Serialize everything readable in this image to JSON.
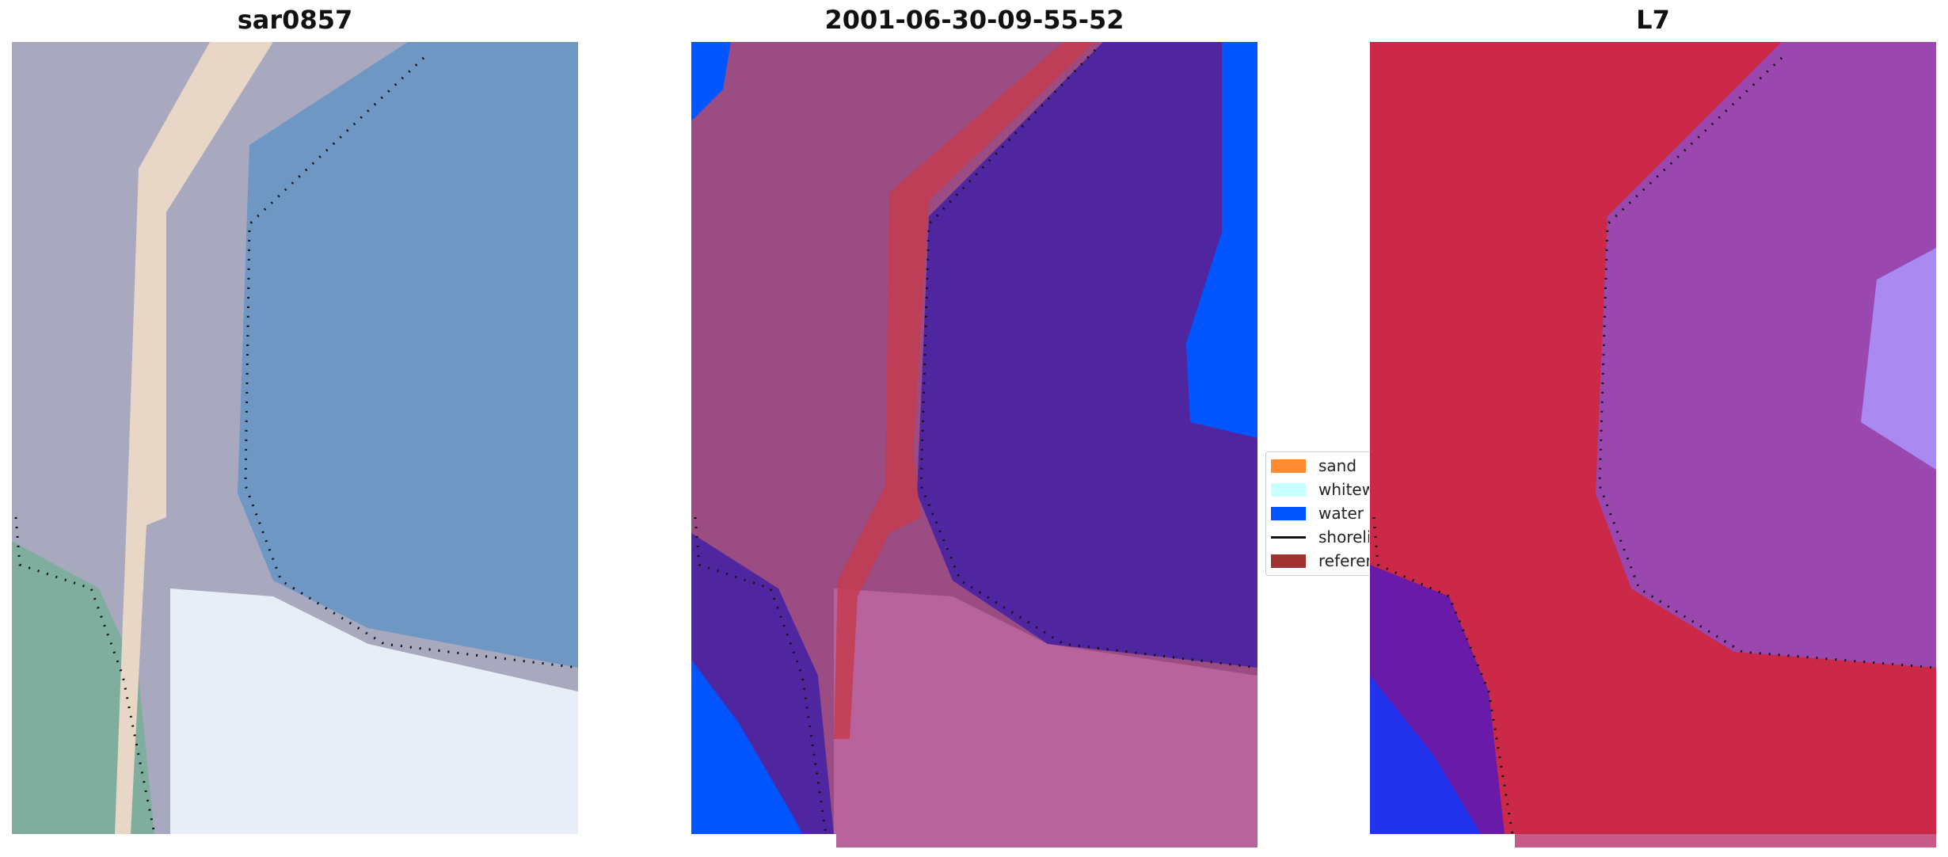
{
  "panels": [
    {
      "title": "sar0857"
    },
    {
      "title": "2001-06-30-09-55-52"
    },
    {
      "title": "L7"
    }
  ],
  "legend": {
    "items": [
      {
        "label": "sand",
        "color": "#ff8c32"
      },
      {
        "label": "whitewater",
        "color": "#c8ffff"
      },
      {
        "label": "water",
        "color": "#0055ff"
      },
      {
        "label": "shoreline",
        "color": "#111111"
      },
      {
        "label": "reference",
        "color": "#a03232"
      }
    ]
  },
  "colors": {
    "rgb_water": "#6f97c3",
    "rgb_land": "#a8a8be",
    "rgb_pier": "#e8d6c6",
    "rgb_surf": "#e8eef6",
    "rgb_green": "#7fae9e",
    "class_land": "#9a4c83",
    "class_water": "#5026a0",
    "class_blue": "#0055ff",
    "class_ref": "#c43c50",
    "class_beach": "#b8639b",
    "mndwi_land": "#cc2848",
    "mndwi_water": "#9a48b0",
    "mndwi_blue": "#2233ee"
  }
}
